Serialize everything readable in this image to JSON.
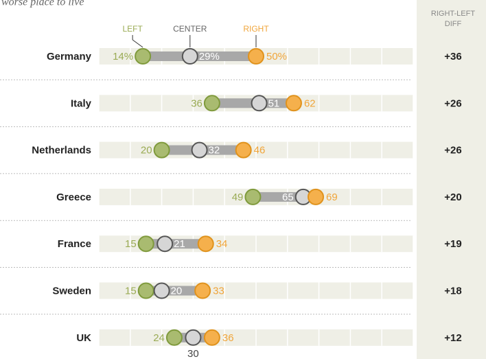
{
  "chart_data": {
    "type": "dot",
    "subtitle": "worse place to live",
    "categories": [
      "Germany",
      "Italy",
      "Netherlands",
      "Greece",
      "France",
      "Sweden",
      "UK"
    ],
    "series": [
      {
        "name": "LEFT",
        "color": "#a9bb70",
        "values": [
          14,
          36,
          20,
          49,
          15,
          15,
          24
        ],
        "value_labels": [
          "14%",
          "36",
          "20",
          "49",
          "15",
          "15",
          "24"
        ]
      },
      {
        "name": "CENTER",
        "color": "#d6d6d6",
        "values": [
          29,
          51,
          32,
          65,
          21,
          20,
          30
        ],
        "value_labels": [
          "29%",
          "51",
          "32",
          "65",
          "21",
          "20",
          "30"
        ]
      },
      {
        "name": "RIGHT",
        "color": "#f5b04c",
        "values": [
          50,
          62,
          46,
          69,
          34,
          33,
          36
        ],
        "value_labels": [
          "50%",
          "62",
          "46",
          "69",
          "34",
          "33",
          "36"
        ]
      }
    ],
    "diff_header": [
      "RIGHT-LEFT",
      "DIFF"
    ],
    "diff": [
      36,
      26,
      26,
      20,
      19,
      18,
      12
    ],
    "diff_labels": [
      "+36",
      "+26",
      "+26",
      "+20",
      "+19",
      "+18",
      "+12"
    ],
    "xlim": [
      0,
      100
    ],
    "xticks": [
      0,
      10,
      20,
      30,
      40,
      50,
      60,
      70,
      80,
      90,
      100
    ],
    "grid": true
  }
}
